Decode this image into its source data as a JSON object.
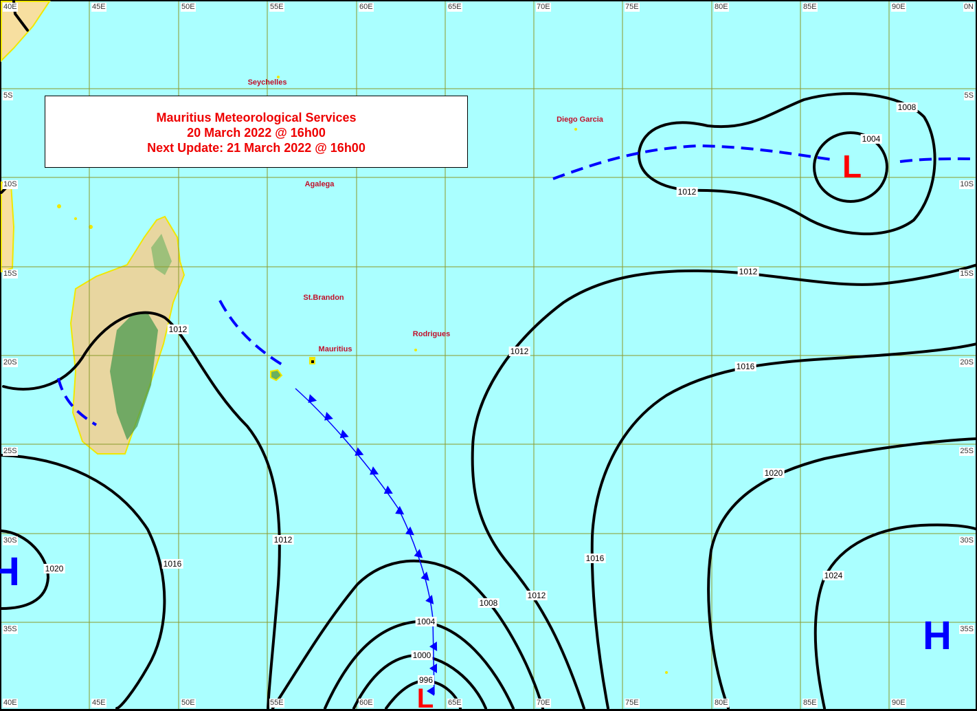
{
  "title_box": {
    "line1": "Mauritius Meteorological Services",
    "line2": "20 March 2022 @ 16h00",
    "line3": "Next Update: 21 March 2022 @ 16h00"
  },
  "grid": {
    "longitudes_top": [
      "40E",
      "45E",
      "50E",
      "55E",
      "60E",
      "65E",
      "70E",
      "75E",
      "80E",
      "85E",
      "90E",
      "0N"
    ],
    "longitudes_bottom": [
      "40E",
      "45E",
      "50E",
      "55E",
      "60E",
      "65E",
      "70E",
      "75E",
      "80E",
      "85E",
      "90E"
    ],
    "latitudes": [
      "5S",
      "10S",
      "15S",
      "20S",
      "25S",
      "30S",
      "35S"
    ],
    "line_color": "#8a9a2a"
  },
  "places": [
    "Seychelles",
    "Agalega",
    "Diego Garcia",
    "St.Brandon",
    "Mauritius",
    "Rodrigues"
  ],
  "isobar_labels": [
    "1008",
    "1004",
    "1012",
    "1012",
    "1012",
    "1016",
    "1016",
    "1020",
    "1012",
    "1016",
    "1020",
    "1024",
    "1012",
    "1008",
    "1004",
    "1000",
    "996",
    "1012"
  ],
  "pressure_centres": [
    {
      "symbol": "L",
      "color": "#ff0000"
    },
    {
      "symbol": "L",
      "color": "#ff0000"
    },
    {
      "symbol": "H",
      "color": "#0000ff"
    },
    {
      "symbol": "H",
      "color": "#0000ff"
    }
  ],
  "colors": {
    "sea": "#aaffff",
    "land": "#f7dfa0",
    "isobar": "#000000",
    "front": "#0000ff",
    "labels": "#c0102a"
  }
}
